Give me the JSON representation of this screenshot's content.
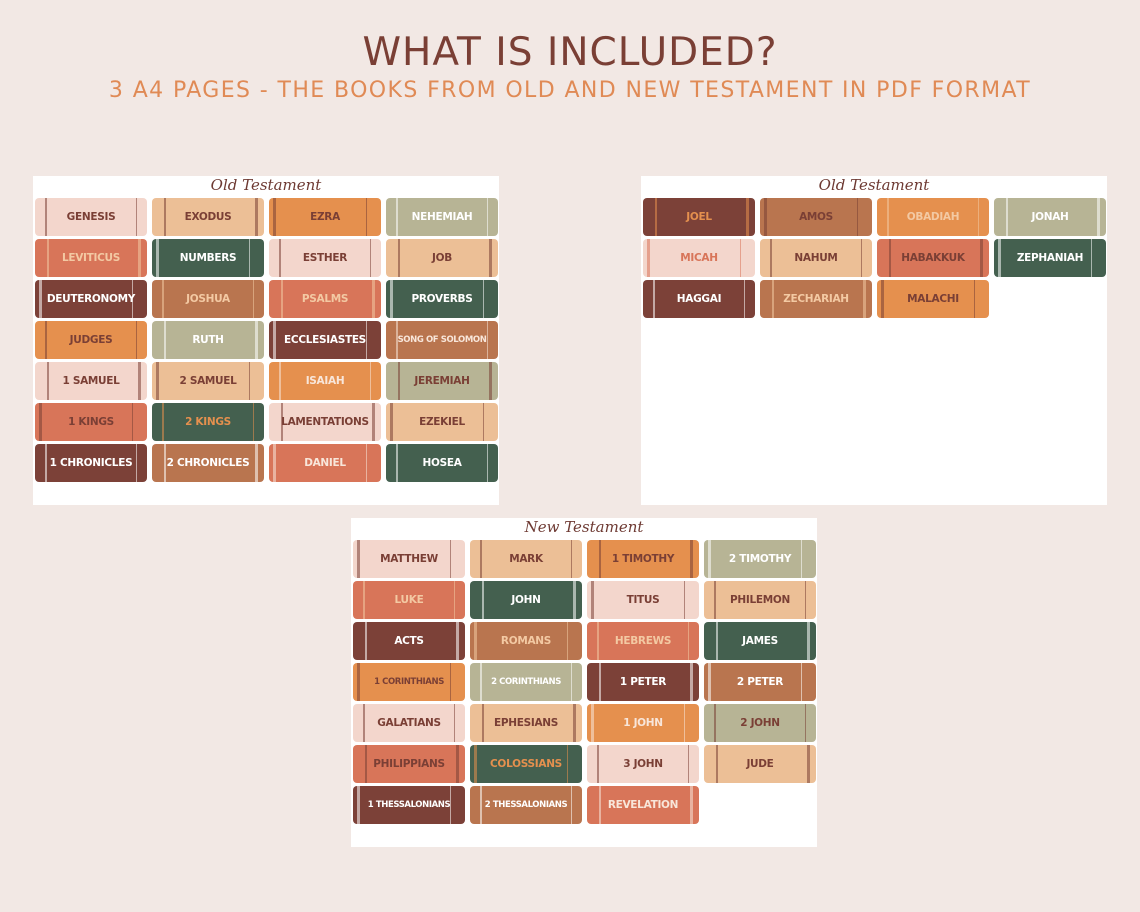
{
  "header": {
    "title": "WHAT IS INCLUDED?",
    "subtitle": "3 A4 PAGES - THE BOOKS FROM OLD AND NEW TESTAMENT IN PDF FORMAT"
  },
  "colors": {
    "background": "#f2e8e4",
    "title": "#7a3f35",
    "subtitle": "#e08a55",
    "blush": "#f3d6cc",
    "peach": "#ecbf96",
    "orange": "#e5904e",
    "sage": "#b7b495",
    "terracotta": "#d87559",
    "green": "#44604f",
    "maroon": "#7c4138",
    "brown": "#b9754f"
  },
  "sheets": [
    {
      "label": "Old Testament",
      "books": [
        {
          "name": "GENESIS",
          "color": "blush",
          "text": "dark"
        },
        {
          "name": "EXODUS",
          "color": "peach",
          "text": "dark"
        },
        {
          "name": "EZRA",
          "color": "orange",
          "text": "dark"
        },
        {
          "name": "NEHEMIAH",
          "color": "sage",
          "text": "white"
        },
        {
          "name": "LEVITICUS",
          "color": "terra",
          "text": "peach"
        },
        {
          "name": "NUMBERS",
          "color": "green",
          "text": "white"
        },
        {
          "name": "ESTHER",
          "color": "blush",
          "text": "dark"
        },
        {
          "name": "JOB",
          "color": "peach",
          "text": "dark"
        },
        {
          "name": "DEUTERONOMY",
          "color": "maroon",
          "text": "white"
        },
        {
          "name": "JOSHUA",
          "color": "brown",
          "text": "peach"
        },
        {
          "name": "PSALMS",
          "color": "terra",
          "text": "peach"
        },
        {
          "name": "PROVERBS",
          "color": "green",
          "text": "white"
        },
        {
          "name": "JUDGES",
          "color": "orange",
          "text": "dark"
        },
        {
          "name": "RUTH",
          "color": "sage",
          "text": "white"
        },
        {
          "name": "ECCLESIASTES",
          "color": "maroon",
          "text": "white"
        },
        {
          "name": "SONG OF SOLOMON",
          "color": "brown",
          "text": "light",
          "small": true
        },
        {
          "name": "1 SAMUEL",
          "color": "blush",
          "text": "dark"
        },
        {
          "name": "2 SAMUEL",
          "color": "peach",
          "text": "dark"
        },
        {
          "name": "ISAIAH",
          "color": "orange",
          "text": "light"
        },
        {
          "name": "JEREMIAH",
          "color": "sage",
          "text": "dark"
        },
        {
          "name": "1 KINGS",
          "color": "terra",
          "text": "dark"
        },
        {
          "name": "2 KINGS",
          "color": "green",
          "text": "orange"
        },
        {
          "name": "LAMENTATIONS",
          "color": "blush",
          "text": "dark"
        },
        {
          "name": "EZEKIEL",
          "color": "peach",
          "text": "dark"
        },
        {
          "name": "1 CHRONICLES",
          "color": "maroon",
          "text": "white"
        },
        {
          "name": "2 CHRONICLES",
          "color": "brown",
          "text": "white"
        },
        {
          "name": "DANIEL",
          "color": "terra",
          "text": "light"
        },
        {
          "name": "HOSEA",
          "color": "green",
          "text": "white"
        }
      ]
    },
    {
      "label": "Old Testament",
      "books": [
        {
          "name": "JOEL",
          "color": "maroon",
          "text": "orange"
        },
        {
          "name": "AMOS",
          "color": "brown",
          "text": "dark"
        },
        {
          "name": "OBADIAH",
          "color": "orange",
          "text": "peach"
        },
        {
          "name": "JONAH",
          "color": "sage",
          "text": "white"
        },
        {
          "name": "MICAH",
          "color": "blush",
          "text": "terra"
        },
        {
          "name": "NAHUM",
          "color": "peach",
          "text": "dark"
        },
        {
          "name": "HABAKKUK",
          "color": "terra",
          "text": "dark"
        },
        {
          "name": "ZEPHANIAH",
          "color": "green",
          "text": "white"
        },
        {
          "name": "HAGGAI",
          "color": "maroon",
          "text": "white"
        },
        {
          "name": "ZECHARIAH",
          "color": "brown",
          "text": "peach"
        },
        {
          "name": "MALACHI",
          "color": "orange",
          "text": "dark"
        }
      ]
    },
    {
      "label": "New Testament",
      "books": [
        {
          "name": "MATTHEW",
          "color": "blush",
          "text": "dark"
        },
        {
          "name": "MARK",
          "color": "peach",
          "text": "dark"
        },
        {
          "name": "1 TIMOTHY",
          "color": "orange",
          "text": "dark"
        },
        {
          "name": "2 TIMOTHY",
          "color": "sage",
          "text": "white"
        },
        {
          "name": "LUKE",
          "color": "terra",
          "text": "peach"
        },
        {
          "name": "JOHN",
          "color": "green",
          "text": "white"
        },
        {
          "name": "TITUS",
          "color": "blush",
          "text": "dark"
        },
        {
          "name": "PHILEMON",
          "color": "peach",
          "text": "dark"
        },
        {
          "name": "ACTS",
          "color": "maroon",
          "text": "white"
        },
        {
          "name": "ROMANS",
          "color": "brown",
          "text": "peach"
        },
        {
          "name": "HEBREWS",
          "color": "terra",
          "text": "peach"
        },
        {
          "name": "JAMES",
          "color": "green",
          "text": "white"
        },
        {
          "name": "1 CORINTHIANS",
          "color": "orange",
          "text": "dark",
          "small": true
        },
        {
          "name": "2 CORINTHIANS",
          "color": "sage",
          "text": "white",
          "small": true
        },
        {
          "name": "1 PETER",
          "color": "maroon",
          "text": "white"
        },
        {
          "name": "2 PETER",
          "color": "brown",
          "text": "white"
        },
        {
          "name": "GALATIANS",
          "color": "blush",
          "text": "dark"
        },
        {
          "name": "EPHESIANS",
          "color": "peach",
          "text": "dark"
        },
        {
          "name": "1 JOHN",
          "color": "orange",
          "text": "light"
        },
        {
          "name": "2 JOHN",
          "color": "sage",
          "text": "dark"
        },
        {
          "name": "PHILIPPIANS",
          "color": "terra",
          "text": "dark"
        },
        {
          "name": "COLOSSIANS",
          "color": "green",
          "text": "orange"
        },
        {
          "name": "3 JOHN",
          "color": "blush",
          "text": "dark"
        },
        {
          "name": "JUDE",
          "color": "peach",
          "text": "dark"
        },
        {
          "name": "1 THESSALONIANS",
          "color": "maroon",
          "text": "white",
          "small": true
        },
        {
          "name": "2 THESSALONIANS",
          "color": "brown",
          "text": "white",
          "small": true
        },
        {
          "name": "REVELATION",
          "color": "terra",
          "text": "light"
        }
      ]
    }
  ]
}
